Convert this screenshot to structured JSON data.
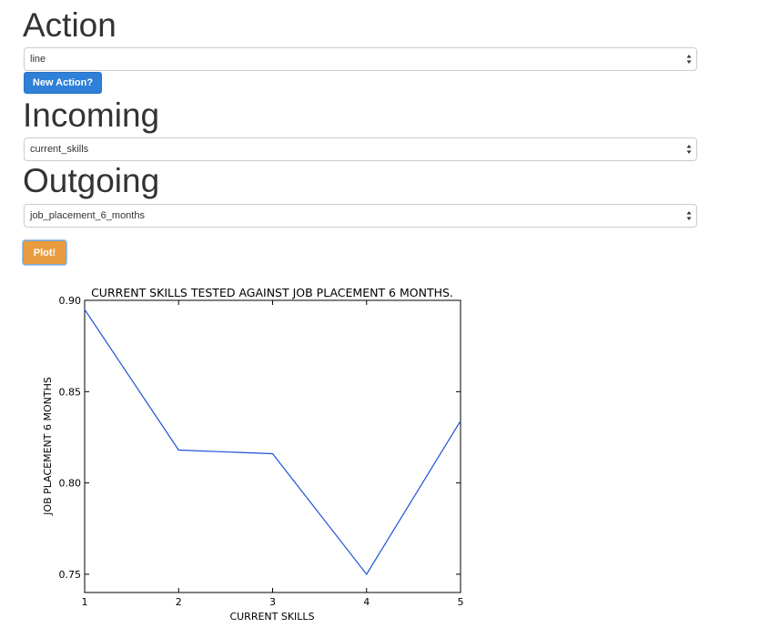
{
  "action": {
    "heading": "Action",
    "selected": "line",
    "new_action_button": "New Action?"
  },
  "incoming": {
    "heading": "Incoming",
    "selected": "current_skills"
  },
  "outgoing": {
    "heading": "Outgoing",
    "selected": "job_placement_6_months"
  },
  "plot_button": "Plot!",
  "icons": {
    "select_arrow": "up-down-chevron-icon"
  },
  "colors": {
    "primary_button": "#2f80d8",
    "warning_button": "#e99c3f",
    "line": "#1f4fd8"
  },
  "chart_data": {
    "type": "line",
    "title": "CURRENT SKILLS TESTED AGAINST JOB PLACEMENT 6 MONTHS.",
    "xlabel": "CURRENT SKILLS",
    "ylabel": "JOB PLACEMENT 6 MONTHS",
    "x": [
      1,
      2,
      3,
      4,
      5
    ],
    "series": [
      {
        "values": [
          0.895,
          0.818,
          0.816,
          0.75,
          0.834
        ]
      }
    ],
    "xlim": [
      1,
      5
    ],
    "ylim": [
      0.74,
      0.9
    ],
    "xticks": [
      "1",
      "2",
      "3",
      "4",
      "5"
    ],
    "yticks": [
      "0.75",
      "0.80",
      "0.85",
      "0.90"
    ],
    "grid": false
  }
}
